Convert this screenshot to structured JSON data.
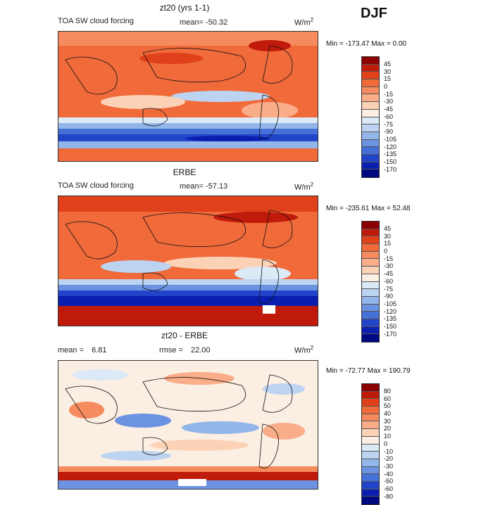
{
  "season": "DJF",
  "panels": [
    {
      "title": "zt20 (yrs 1-1)",
      "variable": "TOA SW cloud forcing",
      "mean_label": "mean=",
      "mean": "-50.32",
      "units": "W/m",
      "min_label": "Min =",
      "min": "-173.47",
      "max_label": "Max =",
      "max": "0.00",
      "levels": [
        "45",
        "30",
        "15",
        "0",
        "-15",
        "-30",
        "-45",
        "-60",
        "-75",
        "-90",
        "-105",
        "-120",
        "-135",
        "-150",
        "-170"
      ],
      "colors": [
        "#8b0000",
        "#c01a0a",
        "#e0401a",
        "#f06a3a",
        "#f58b5e",
        "#f9ad88",
        "#fcd2b6",
        "#fbeee2",
        "#dce9f7",
        "#bcd4f2",
        "#93b6ea",
        "#6b93e2",
        "#4570d8",
        "#2244c8",
        "#0a1fb0",
        "#000a80"
      ]
    },
    {
      "title": "ERBE",
      "variable": "TOA SW cloud forcing",
      "mean_label": "mean=",
      "mean": "-57.13",
      "units": "W/m",
      "min_label": "Min =",
      "min": "-235.61",
      "max_label": "Max =",
      "max": "52.48",
      "levels": [
        "45",
        "30",
        "15",
        "0",
        "-15",
        "-30",
        "-45",
        "-60",
        "-75",
        "-90",
        "-105",
        "-120",
        "-135",
        "-150",
        "-170"
      ],
      "colors": [
        "#8b0000",
        "#c01a0a",
        "#e0401a",
        "#f06a3a",
        "#f58b5e",
        "#f9ad88",
        "#fcd2b6",
        "#fbeee2",
        "#dce9f7",
        "#bcd4f2",
        "#93b6ea",
        "#6b93e2",
        "#4570d8",
        "#2244c8",
        "#0a1fb0",
        "#000a80"
      ]
    },
    {
      "title": "zt20 - ERBE",
      "mean_label": "mean =",
      "mean": "6.81",
      "rmse_label": "rmse =",
      "rmse": "22.00",
      "units": "W/m",
      "min_label": "Min =",
      "min": "-72.77",
      "max_label": "Max =",
      "max": "190.79",
      "levels": [
        "80",
        "60",
        "50",
        "40",
        "30",
        "20",
        "10",
        "0",
        "-10",
        "-20",
        "-30",
        "-40",
        "-50",
        "-60",
        "-80"
      ],
      "colors": [
        "#8b0000",
        "#c01a0a",
        "#e0401a",
        "#f06a3a",
        "#f58b5e",
        "#f9ad88",
        "#fcd2b6",
        "#fbeee2",
        "#dce9f7",
        "#bcd4f2",
        "#93b6ea",
        "#6b93e2",
        "#4570d8",
        "#2244c8",
        "#0a1fb0",
        "#000a80"
      ]
    }
  ]
}
